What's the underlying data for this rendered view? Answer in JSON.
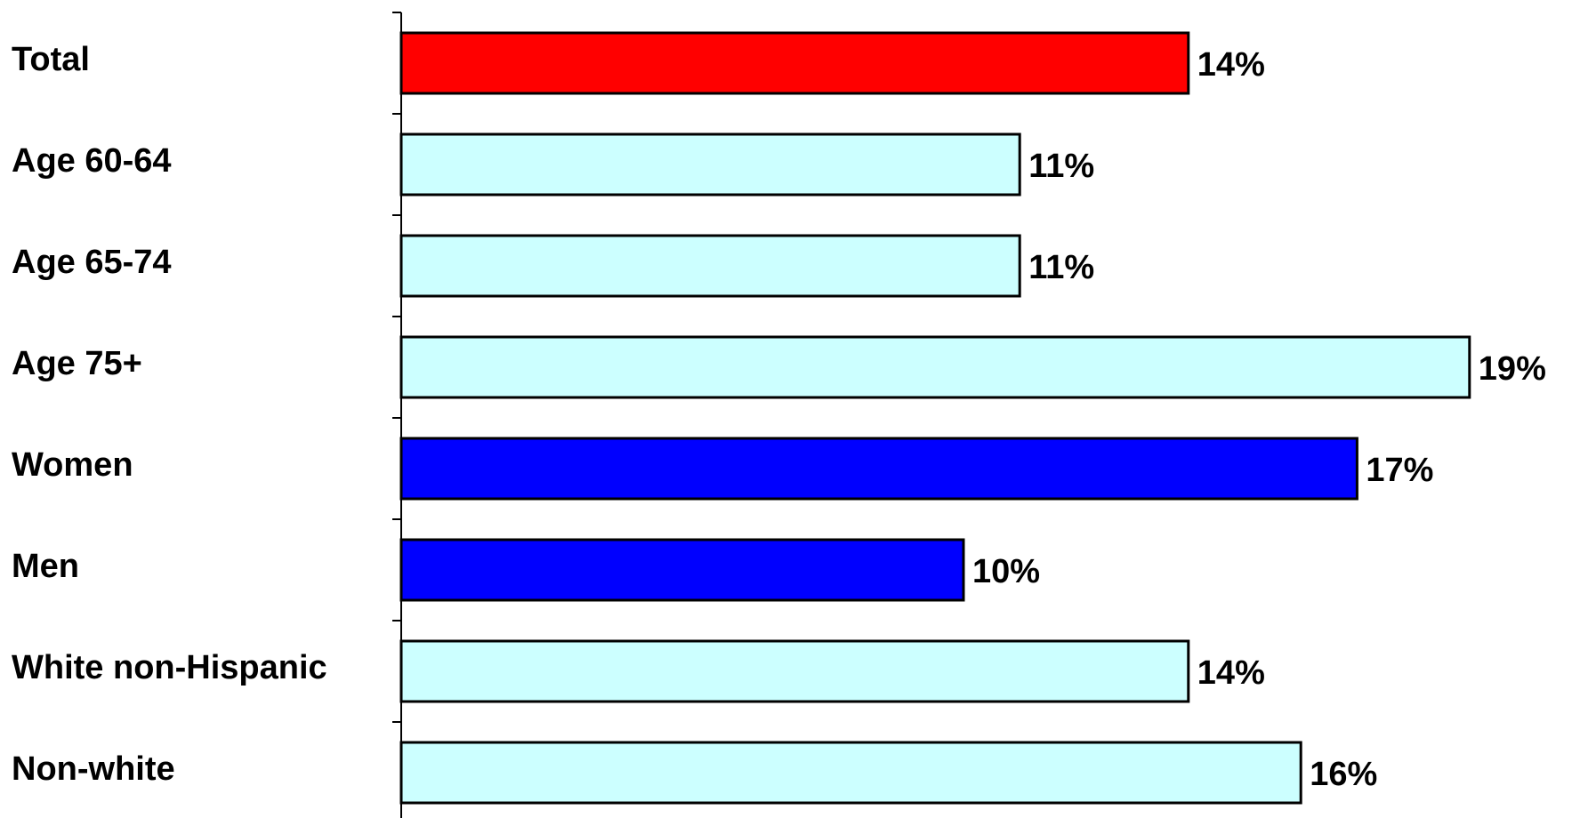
{
  "chart_data": {
    "type": "bar",
    "orientation": "horizontal",
    "title": "",
    "xlabel": "",
    "ylabel": "",
    "xlim": [
      0,
      20
    ],
    "grid": false,
    "legend": "none",
    "categories": [
      "Total",
      "Age 60-64",
      "Age 65-74",
      "Age 75+",
      "Women",
      "Men",
      "White non-Hispanic",
      "Non-white"
    ],
    "values": [
      14,
      11,
      11,
      19,
      17,
      10,
      14,
      16
    ],
    "value_labels": [
      "14%",
      "11%",
      "11%",
      "19%",
      "17%",
      "10%",
      "14%",
      "16%"
    ],
    "bar_colors": [
      "#ff0000",
      "#ccffff",
      "#ccffff",
      "#ccffff",
      "#0000ff",
      "#0000ff",
      "#ccffff",
      "#ccffff"
    ]
  }
}
